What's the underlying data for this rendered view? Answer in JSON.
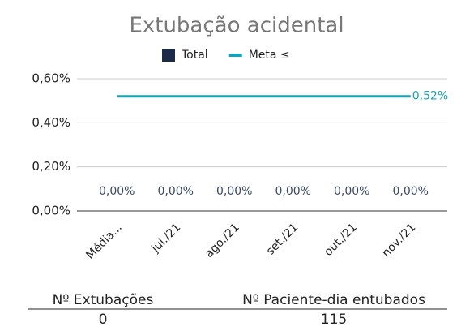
{
  "chart_data": {
    "type": "bar",
    "title": "Extubação acidental",
    "categories": [
      "Média...",
      "jul./21",
      "ago./21",
      "set./21",
      "out./21",
      "nov./21"
    ],
    "series": [
      {
        "name": "Total",
        "color": "#1b2a47",
        "values": [
          0,
          0,
          0,
          0,
          0,
          0
        ],
        "value_labels": [
          "0,00%",
          "0,00%",
          "0,00%",
          "0,00%",
          "0,00%",
          "0,00%"
        ]
      },
      {
        "name": "Meta ≤",
        "type": "line",
        "color": "#17a2b8",
        "values": [
          0.52,
          0.52,
          0.52,
          0.52,
          0.52,
          0.52
        ],
        "value_labels": [
          null,
          null,
          null,
          null,
          null,
          "0,52%"
        ]
      }
    ],
    "ylim": [
      0,
      0.6
    ],
    "yticks": [
      {
        "value": 0,
        "label": "0,00%"
      },
      {
        "value": 0.2,
        "label": "0,20%"
      },
      {
        "value": 0.4,
        "label": "0,40%"
      },
      {
        "value": 0.6,
        "label": "0,60%"
      }
    ],
    "grid": true,
    "legend": "top"
  },
  "table": {
    "headers": [
      "Nº Extubações",
      "Nº Paciente-dia entubados"
    ],
    "rows": [
      [
        "0",
        "115"
      ]
    ]
  }
}
